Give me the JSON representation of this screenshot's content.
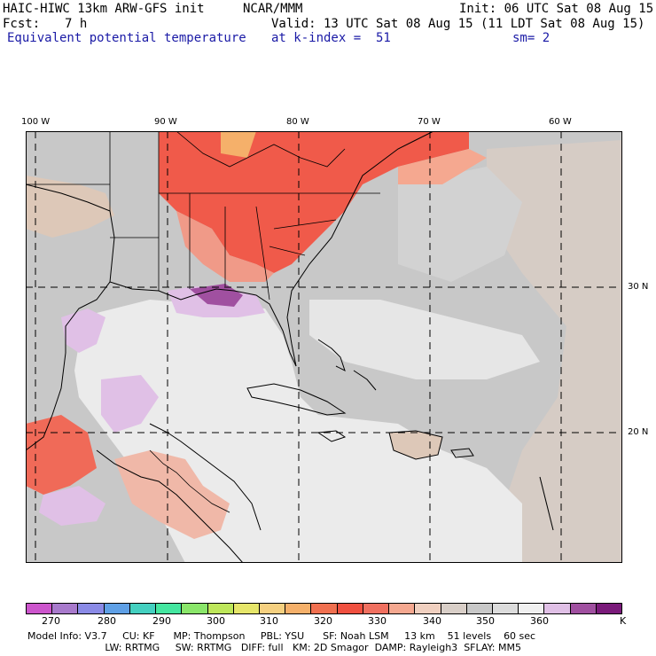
{
  "header": {
    "model": "HAIC-HIWC 13km ARW-GFS init",
    "org": "NCAR/MMM",
    "init": "Init: 06 UTC Sat 08 Aug 15",
    "fcst_label": "Fcst:",
    "fcst_value": "7 h",
    "valid": "Valid: 13 UTC Sat 08 Aug 15 (11 LDT Sat 08 Aug 15)",
    "field": "Equivalent potential temperature",
    "level": "at k-index =  51",
    "smooth": "sm= 2"
  },
  "map": {
    "lon_labels": [
      "100 W",
      "90 W",
      "80 W",
      "70 W",
      "60 W"
    ],
    "lat_labels": [
      "30 N",
      "20 N"
    ],
    "regions": {
      "gulf": "light-gray",
      "atlantic": "gray",
      "se_us": "red",
      "gulf_north_coast": "purple"
    }
  },
  "colorbar": {
    "colors": [
      "#cc55cc",
      "#a87acc",
      "#8a8ae6",
      "#5fa0e6",
      "#44d0c0",
      "#44e6a0",
      "#8ae66a",
      "#bde65a",
      "#e6e66a",
      "#f5d080",
      "#f5b06a",
      "#f07050",
      "#f05040",
      "#f07060",
      "#f5a890",
      "#f0d0c0",
      "#d9cfc8",
      "#c8c8c8",
      "#dcdcdc",
      "#f0f0f0",
      "#e0c0e6",
      "#a050a0",
      "#7a1a7a"
    ],
    "labels": [
      "270",
      "280",
      "290",
      "300",
      "310",
      "320",
      "330",
      "340",
      "350",
      "360"
    ],
    "unit": "K"
  },
  "model_info": {
    "line1": {
      "model": "Model Info: V3.7",
      "cu": "CU: KF",
      "mp": "MP: Thompson",
      "pbl": "PBL: YSU",
      "sf": "SF: Noah LSM",
      "res": "13 km",
      "levels": "51 levels",
      "dt": "60 sec"
    },
    "line2": {
      "lw": "LW: RRTMG",
      "sw": "SW: RRTMG",
      "diff": "DIFF: full",
      "km": "KM: 2D Smagor",
      "damp": "DAMP: Rayleigh3",
      "sflay": "SFLAY: MM5"
    }
  }
}
